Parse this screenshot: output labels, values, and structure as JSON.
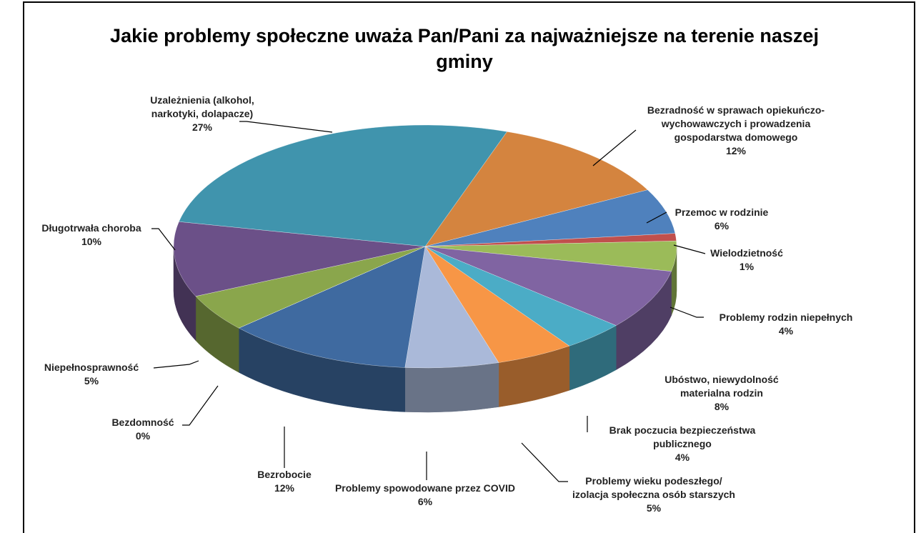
{
  "chart_data": {
    "type": "pie3d",
    "title": "Jakie problemy społeczne uważa Pan/Pani za najważniejsze na terenie naszej gminy",
    "categories": [
      "Bezradność w sprawach opiekuńczo-wychowawczych i prowadzenia gospodarstwa domowego",
      "Przemoc w rodzinie",
      "Wielodzietność",
      "Problemy rodzin niepełnych",
      "Ubóstwo, niewydolność materialna rodzin",
      "Brak poczucia bezpieczeństwa publicznego",
      "Problemy wieku podeszłego/ izolacja społeczna osób starszych",
      "Problemy spowodowane przez COVID",
      "Bezrobocie",
      "Bezdomność",
      "Niepełnosprawność",
      "Długotrwała choroba",
      "Uzależnienia (alkohol, narkotyki, dolapacze)"
    ],
    "values": [
      12,
      6,
      1,
      4,
      8,
      4,
      5,
      6,
      12,
      0,
      5,
      10,
      27
    ],
    "value_labels": [
      "12%",
      "6%",
      "1%",
      "4%",
      "8%",
      "4%",
      "5%",
      "6%",
      "12%",
      "0%",
      "5%",
      "10%",
      "27%"
    ],
    "colors": [
      "#d4843f",
      "#4f81bd",
      "#c0504d",
      "#9bbb59",
      "#8064a2",
      "#4bacc6",
      "#f79646",
      "#aab9d9",
      "#3f6aa0",
      "#c0504d",
      "#8aa64c",
      "#6b5088",
      "#4094ad"
    ]
  }
}
